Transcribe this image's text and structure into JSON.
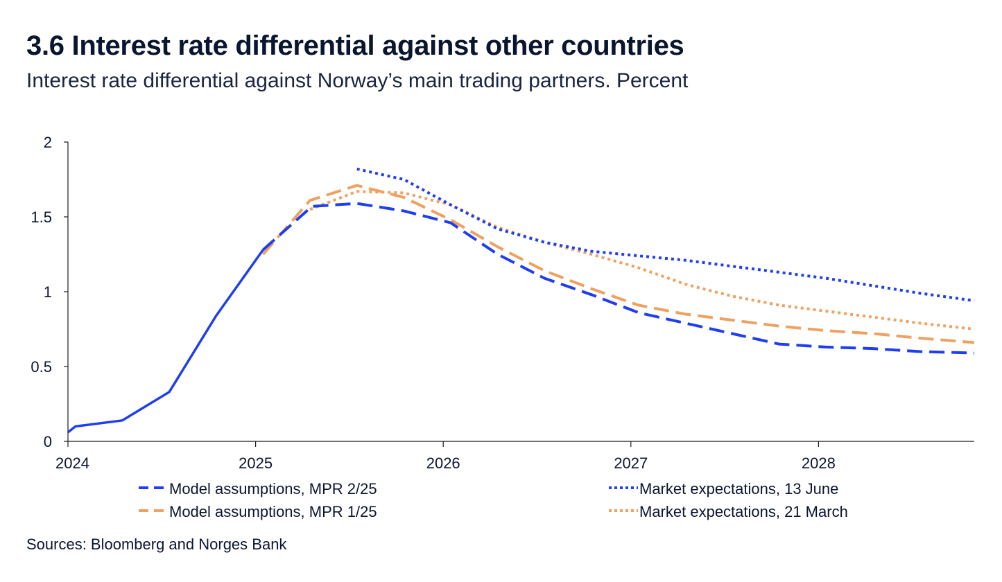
{
  "header": {
    "title": "3.6 Interest rate differential against other countries",
    "subtitle": "Interest rate differential against Norway’s main trading partners. Percent"
  },
  "footer": {
    "source": "Sources: Bloomberg and Norges Bank"
  },
  "chart_data": {
    "type": "line",
    "title": "3.6 Interest rate differential against other countries",
    "subtitle": "Interest rate differential against Norway’s main trading partners. Percent",
    "xlabel": "",
    "ylabel": "",
    "xlim": [
      2024.0,
      2028.83
    ],
    "ylim": [
      0,
      2
    ],
    "yticks": [
      0,
      0.5,
      1,
      1.5,
      2
    ],
    "ytick_labels": [
      "0",
      "0.5",
      "1",
      "1.5",
      "2"
    ],
    "xticks": [
      2024,
      2025,
      2026,
      2027,
      2028
    ],
    "xtick_labels": [
      "2024",
      "2025",
      "2026",
      "2027",
      "2028"
    ],
    "grid": false,
    "legend_placement": "bottom",
    "series": [
      {
        "name": "Model assumptions, MPR 2/25",
        "color": "#1f3ef0",
        "style": "solid-then-dashed",
        "solid_until": 2025.05,
        "x": [
          2024.0,
          2024.04,
          2024.29,
          2024.54,
          2024.79,
          2025.04,
          2025.3,
          2025.54,
          2025.79,
          2026.04,
          2026.29,
          2026.54,
          2026.79,
          2027.04,
          2027.29,
          2027.54,
          2027.79,
          2028.04,
          2028.29,
          2028.54,
          2028.83
        ],
        "y": [
          0.06,
          0.1,
          0.14,
          0.33,
          0.84,
          1.28,
          1.57,
          1.59,
          1.54,
          1.46,
          1.25,
          1.09,
          0.98,
          0.86,
          0.79,
          0.72,
          0.65,
          0.63,
          0.62,
          0.6,
          0.59
        ]
      },
      {
        "name": "Model assumptions, MPR 1/25",
        "color": "#f0a060",
        "style": "dashed",
        "x": [
          2025.04,
          2025.29,
          2025.54,
          2025.79,
          2026.04,
          2026.29,
          2026.54,
          2026.79,
          2027.04,
          2027.29,
          2027.54,
          2027.79,
          2028.04,
          2028.29,
          2028.54,
          2028.83
        ],
        "y": [
          1.25,
          1.61,
          1.71,
          1.63,
          1.48,
          1.3,
          1.14,
          1.02,
          0.91,
          0.85,
          0.81,
          0.77,
          0.74,
          0.72,
          0.69,
          0.66
        ]
      },
      {
        "name": "Market expectations, 13 June",
        "color": "#1f3ef0",
        "style": "dotted",
        "x": [
          2025.54,
          2025.79,
          2026.04,
          2026.29,
          2026.54,
          2026.79,
          2027.04,
          2027.29,
          2027.54,
          2027.79,
          2028.04,
          2028.29,
          2028.54,
          2028.83
        ],
        "y": [
          1.82,
          1.75,
          1.58,
          1.42,
          1.33,
          1.27,
          1.24,
          1.21,
          1.17,
          1.13,
          1.09,
          1.04,
          0.99,
          0.94
        ]
      },
      {
        "name": "Market expectations, 21 March",
        "color": "#f0a060",
        "style": "dotted",
        "x": [
          2025.29,
          2025.54,
          2025.79,
          2026.04,
          2026.29,
          2026.54,
          2026.79,
          2027.04,
          2027.29,
          2027.54,
          2027.79,
          2028.04,
          2028.29,
          2028.54,
          2028.83
        ],
        "y": [
          1.55,
          1.67,
          1.66,
          1.58,
          1.43,
          1.33,
          1.25,
          1.16,
          1.05,
          0.97,
          0.91,
          0.87,
          0.83,
          0.79,
          0.75
        ]
      }
    ]
  }
}
